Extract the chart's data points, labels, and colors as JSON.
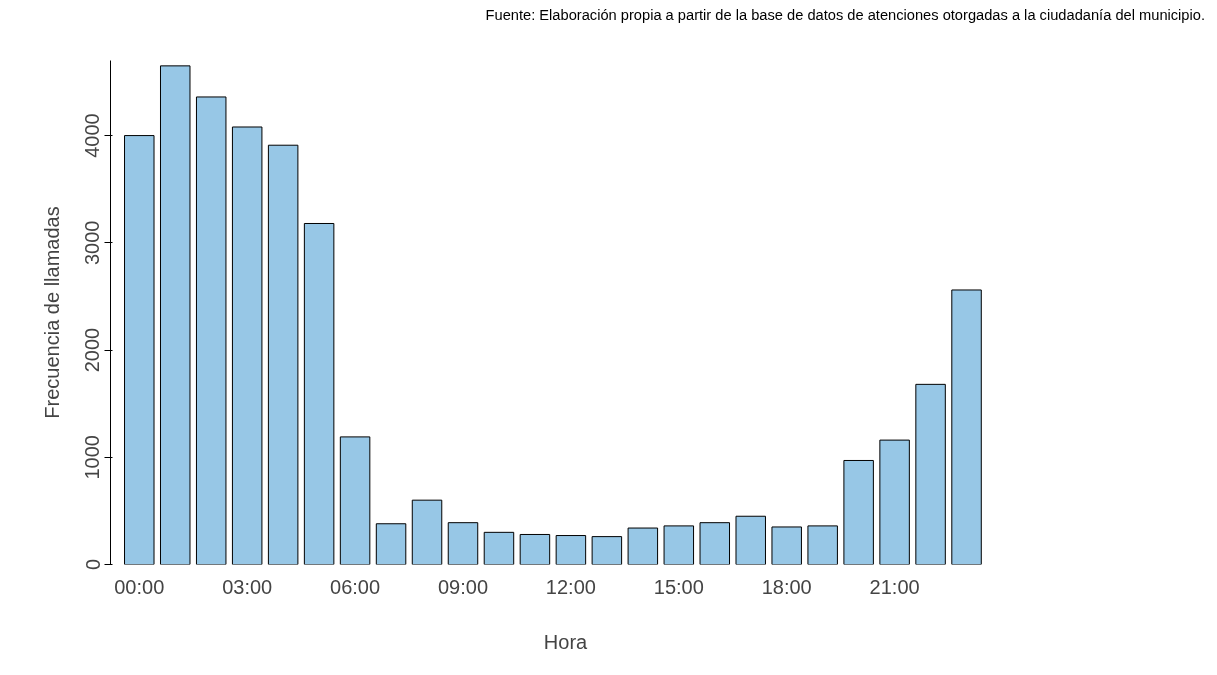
{
  "chart_data": {
    "type": "bar",
    "xlabel": "Hora",
    "ylabel": "Frecuencia de llamadas",
    "annotations": [
      "Fuente: Elaboración propia a partir de la base de datos de atenciones otorgadas a la ciudadanía del municipio."
    ],
    "categories": [
      "00:00",
      null,
      null,
      "03:00",
      null,
      null,
      "06:00",
      null,
      null,
      "09:00",
      null,
      null,
      "12:00",
      null,
      null,
      "15:00",
      null,
      null,
      "18:00",
      null,
      null,
      "21:00",
      null,
      null
    ],
    "values": [
      4000,
      4650,
      4360,
      4080,
      3910,
      3180,
      1190,
      380,
      600,
      390,
      300,
      280,
      270,
      260,
      340,
      360,
      390,
      450,
      350,
      360,
      970,
      1160,
      1680,
      2560
    ],
    "color": "#97c7e6",
    "ylim": [
      0,
      4700
    ],
    "yticks": [
      0,
      1000,
      2000,
      3000,
      4000
    ],
    "grid": false
  }
}
